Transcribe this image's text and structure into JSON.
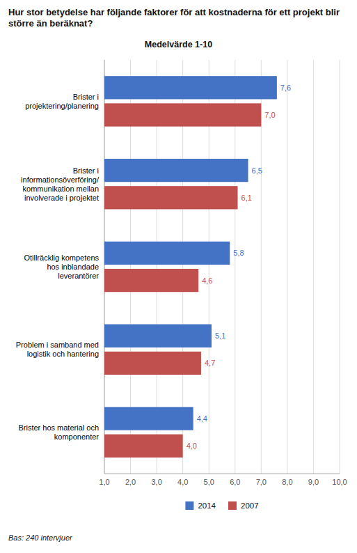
{
  "chart_data": {
    "type": "bar",
    "orientation": "horizontal",
    "title": "Hur stor betydelse har följande faktorer för att kostnaderna för ett projekt blir\nstörre än beräknat?",
    "subtitle": "Medelvärde 1-10",
    "footnote": "Bas: 240 intervjuer",
    "categories": [
      "Brister i\nprojektering/planering",
      "Brister i\ninformationsöverföring/\nkommunikation mellan\ninvolverade i projektet",
      "Otillräcklig kompetens\nhos inblandade\nleverantörer",
      "Problem i samband med\nlogistik och hantering",
      "Brister hos material och\nkomponenter"
    ],
    "series": [
      {
        "name": "2014",
        "color": "#4472C4",
        "values": [
          7.6,
          6.5,
          5.8,
          5.1,
          4.4
        ],
        "value_labels": [
          "7,6",
          "6,5",
          "5,8",
          "5,1",
          "4,4"
        ]
      },
      {
        "name": "2007",
        "color": "#C0504D",
        "values": [
          7.0,
          6.1,
          4.6,
          4.7,
          4.0
        ],
        "value_labels": [
          "7,0",
          "6,1",
          "4,6",
          "4,7",
          "4,0"
        ]
      }
    ],
    "xlim": [
      1.0,
      10.0
    ],
    "xticks": [
      {
        "value": 1.0,
        "label": "1,0"
      },
      {
        "value": 2.0,
        "label": "2,0"
      },
      {
        "value": 3.0,
        "label": "3,0"
      },
      {
        "value": 4.0,
        "label": "4,0"
      },
      {
        "value": 5.0,
        "label": "5,0"
      },
      {
        "value": 6.0,
        "label": "6,0"
      },
      {
        "value": 7.0,
        "label": "7,0"
      },
      {
        "value": 8.0,
        "label": "8,0"
      },
      {
        "value": 9.0,
        "label": "9,0"
      },
      {
        "value": 10.0,
        "label": "10,0"
      }
    ],
    "grid": true,
    "legend": "bottom",
    "data_labels": true
  }
}
